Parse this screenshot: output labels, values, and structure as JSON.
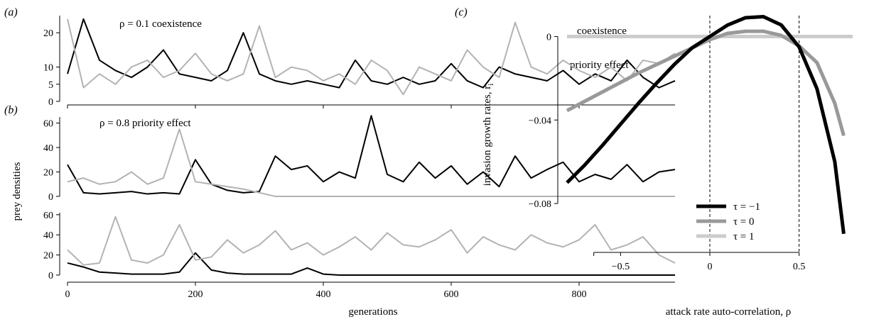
{
  "chart_data": [
    {
      "panel": "(a)",
      "type": "line",
      "annotation": "ρ = 0.1 coexistence",
      "xlim": [
        0,
        950
      ],
      "ylim": [
        0,
        25
      ],
      "yticks": [
        "0",
        "5",
        "10",
        "20"
      ],
      "series": [
        {
          "color": "#000000",
          "x": [
            0,
            25,
            50,
            75,
            100,
            125,
            150,
            175,
            200,
            225,
            250,
            275,
            300,
            325,
            350,
            375,
            400,
            425,
            450,
            475,
            500,
            525,
            550,
            575,
            600,
            625,
            650,
            675,
            700,
            725,
            750,
            775,
            800,
            825,
            850,
            875,
            900,
            925,
            950
          ],
          "y": [
            8,
            24,
            12,
            9,
            7,
            10,
            15,
            8,
            7,
            6,
            9,
            20,
            8,
            6,
            5,
            6,
            5,
            4,
            12,
            6,
            5,
            7,
            5,
            6,
            11,
            6,
            4,
            10,
            8,
            7,
            6,
            9,
            5,
            8,
            6,
            12,
            7,
            4,
            6
          ]
        },
        {
          "color": "#b3b3b3",
          "x": [
            0,
            25,
            50,
            75,
            100,
            125,
            150,
            175,
            200,
            225,
            250,
            275,
            300,
            325,
            350,
            375,
            400,
            425,
            450,
            475,
            500,
            525,
            550,
            575,
            600,
            625,
            650,
            675,
            700,
            725,
            750,
            775,
            800,
            825,
            850,
            875,
            900,
            925,
            950
          ],
          "y": [
            24,
            4,
            8,
            5,
            10,
            12,
            7,
            9,
            14,
            8,
            6,
            8,
            22,
            7,
            10,
            9,
            6,
            8,
            5,
            12,
            9,
            2,
            10,
            8,
            6,
            15,
            10,
            7,
            23,
            10,
            8,
            12,
            9,
            7,
            10,
            6,
            12,
            11,
            14
          ]
        }
      ]
    },
    {
      "panel": "(b)",
      "type": "line",
      "annotation": "ρ = 0.8 priority effect",
      "ylabel": "prey densities",
      "xlim": [
        0,
        950
      ],
      "ylim": [
        0,
        65
      ],
      "yticks": [
        "0",
        "20",
        "40",
        "60"
      ],
      "series": [
        {
          "color": "#000000",
          "x": [
            0,
            25,
            50,
            75,
            100,
            125,
            150,
            175,
            200,
            225,
            250,
            275,
            300,
            325,
            350,
            375,
            400,
            425,
            450,
            475,
            500,
            525,
            550,
            575,
            600,
            625,
            650,
            675,
            700,
            725,
            750,
            775,
            800,
            825,
            850,
            875,
            900,
            925,
            950
          ],
          "y": [
            26,
            3,
            2,
            3,
            4,
            2,
            3,
            2,
            30,
            10,
            5,
            3,
            4,
            33,
            22,
            25,
            12,
            20,
            15,
            66,
            18,
            12,
            28,
            15,
            25,
            10,
            20,
            8,
            33,
            15,
            22,
            28,
            12,
            18,
            14,
            26,
            12,
            20,
            22
          ]
        },
        {
          "color": "#b3b3b3",
          "x": [
            0,
            25,
            50,
            75,
            100,
            125,
            150,
            175,
            200,
            225,
            250,
            275,
            300,
            325,
            350,
            375,
            400,
            425,
            450,
            475,
            500,
            525,
            550,
            575,
            600,
            625,
            650,
            675,
            700,
            725,
            750,
            775,
            800,
            825,
            850,
            875,
            900,
            925,
            950
          ],
          "y": [
            12,
            15,
            10,
            12,
            20,
            10,
            15,
            55,
            12,
            10,
            8,
            6,
            3,
            0,
            0,
            0,
            0,
            0,
            0,
            0,
            0,
            0,
            0,
            0,
            0,
            0,
            0,
            0,
            0,
            0,
            0,
            0,
            0,
            0,
            0,
            0,
            0,
            0,
            0
          ]
        }
      ]
    },
    {
      "panel": "(b-lower)",
      "type": "line",
      "xlabel": "generations",
      "xlim": [
        0,
        950
      ],
      "ylim": [
        0,
        62
      ],
      "yticks": [
        "0",
        "20",
        "40",
        "60"
      ],
      "xticks": [
        "0",
        "200",
        "400",
        "600",
        "800"
      ],
      "series": [
        {
          "color": "#000000",
          "x": [
            0,
            25,
            50,
            75,
            100,
            125,
            150,
            175,
            200,
            225,
            250,
            275,
            300,
            325,
            350,
            375,
            400,
            425,
            450,
            475,
            500,
            525,
            550,
            575,
            600,
            625,
            650,
            675,
            700,
            725,
            750,
            775,
            800,
            825,
            850,
            875,
            900,
            925,
            950
          ],
          "y": [
            12,
            8,
            3,
            2,
            1,
            1,
            1,
            3,
            22,
            5,
            2,
            1,
            1,
            1,
            1,
            7,
            1,
            0,
            0,
            0,
            0,
            0,
            0,
            0,
            0,
            0,
            0,
            0,
            0,
            0,
            0,
            0,
            0,
            0,
            0,
            0,
            0,
            0,
            0
          ]
        },
        {
          "color": "#b3b3b3",
          "x": [
            0,
            25,
            50,
            75,
            100,
            125,
            150,
            175,
            200,
            225,
            250,
            275,
            300,
            325,
            350,
            375,
            400,
            425,
            450,
            475,
            500,
            525,
            550,
            575,
            600,
            625,
            650,
            675,
            700,
            725,
            750,
            775,
            800,
            825,
            850,
            875,
            900,
            925,
            950
          ],
          "y": [
            25,
            10,
            12,
            58,
            15,
            12,
            20,
            50,
            15,
            18,
            35,
            22,
            30,
            44,
            25,
            32,
            20,
            28,
            38,
            25,
            42,
            30,
            28,
            35,
            45,
            22,
            38,
            30,
            25,
            40,
            32,
            28,
            35,
            50,
            25,
            30,
            38,
            20,
            12
          ]
        }
      ]
    },
    {
      "panel": "(c)",
      "type": "line",
      "xlabel": "attack rate auto-correlation, ρ",
      "ylabel": "invasion growth rates, r",
      "ylabel_sub": "i",
      "annotations": [
        "coexistence",
        "priority effect"
      ],
      "xlim": [
        -0.8,
        0.8
      ],
      "ylim": [
        -0.1,
        0.01
      ],
      "xticks": [
        -0.5,
        0,
        0.5
      ],
      "xtick_labels": [
        "−0.5",
        "0",
        "0.5"
      ],
      "yticks": [
        0,
        -0.04,
        -0.08
      ],
      "ytick_labels": [
        "0",
        "−0.04",
        "−0.08"
      ],
      "vlines": [
        0,
        0.5
      ],
      "series": [
        {
          "name": "τ = −1",
          "color": "#000000",
          "x": [
            -0.8,
            -0.7,
            -0.6,
            -0.5,
            -0.4,
            -0.3,
            -0.2,
            -0.1,
            0,
            0.1,
            0.2,
            0.3,
            0.4,
            0.5,
            0.6,
            0.7,
            0.75
          ],
          "y": [
            -0.07,
            -0.0615,
            -0.052,
            -0.042,
            -0.032,
            -0.0225,
            -0.0135,
            -0.0055,
            0,
            0.0055,
            0.009,
            0.0095,
            0.0055,
            -0.005,
            -0.025,
            -0.06,
            -0.0945
          ]
        },
        {
          "name": "τ = 0",
          "color": "#999999",
          "x": [
            -0.8,
            -0.7,
            -0.6,
            -0.5,
            -0.4,
            -0.3,
            -0.2,
            -0.1,
            0,
            0.1,
            0.2,
            0.3,
            0.4,
            0.5,
            0.6,
            0.7,
            0.75
          ],
          "y": [
            -0.0355,
            -0.031,
            -0.0265,
            -0.022,
            -0.0175,
            -0.0135,
            -0.0095,
            -0.0055,
            -0.0015,
            0.0015,
            0.0025,
            0.0025,
            0.0005,
            -0.0045,
            -0.0125,
            -0.032,
            -0.0475
          ]
        },
        {
          "name": "τ = 1",
          "color": "#cccccc",
          "x": [
            -0.8,
            0.8
          ],
          "y": [
            0,
            0
          ]
        }
      ]
    }
  ]
}
